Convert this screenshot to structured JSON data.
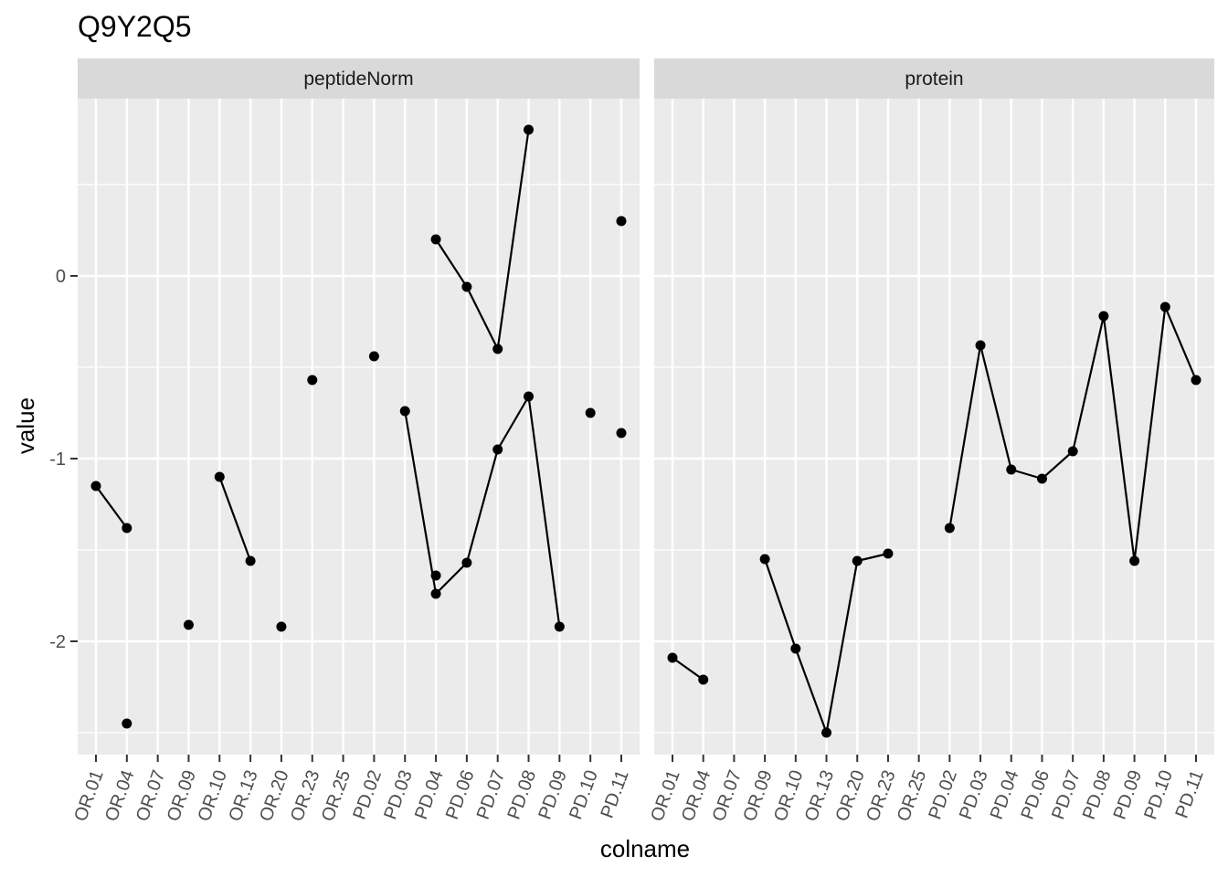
{
  "chart_data": {
    "type": "line",
    "title": "Q9Y2Q5",
    "xlabel": "colname",
    "ylabel": "value",
    "categories": [
      "OR.01",
      "OR.04",
      "OR.07",
      "OR.09",
      "OR.10",
      "OR.13",
      "OR.20",
      "OR.23",
      "OR.25",
      "PD.02",
      "PD.03",
      "PD.04",
      "PD.06",
      "PD.07",
      "PD.08",
      "PD.09",
      "PD.10",
      "PD.11"
    ],
    "ylim": [
      -2.62,
      0.97
    ],
    "yticks": [
      -2,
      -1,
      0
    ],
    "ytick_labels": [
      "-2",
      "-1",
      "0"
    ],
    "grid": true,
    "legend": "none",
    "colors": {
      "panel_bg": "#ebebeb",
      "strip_bg": "#d9d9d9",
      "grid": "#ffffff",
      "mark": "#000000"
    },
    "panels": [
      {
        "strip": "peptideNorm",
        "series": [
          {
            "values": [
              -1.15,
              -1.38,
              null,
              null,
              null,
              null,
              null,
              null,
              null,
              null,
              null,
              null,
              null,
              null,
              null,
              null,
              null,
              null
            ]
          },
          {
            "values": [
              null,
              -2.45,
              null,
              null,
              null,
              null,
              null,
              null,
              null,
              null,
              null,
              null,
              null,
              null,
              null,
              null,
              null,
              null
            ]
          },
          {
            "values": [
              null,
              null,
              null,
              -1.91,
              null,
              null,
              null,
              null,
              null,
              null,
              null,
              null,
              null,
              null,
              null,
              null,
              null,
              null
            ]
          },
          {
            "values": [
              null,
              null,
              null,
              null,
              -1.1,
              -1.56,
              null,
              null,
              null,
              null,
              null,
              null,
              null,
              null,
              null,
              null,
              null,
              null
            ]
          },
          {
            "values": [
              null,
              null,
              null,
              null,
              null,
              null,
              -1.92,
              null,
              null,
              null,
              null,
              null,
              null,
              null,
              null,
              null,
              null,
              null
            ]
          },
          {
            "values": [
              null,
              null,
              null,
              null,
              null,
              null,
              null,
              -0.57,
              null,
              null,
              null,
              null,
              null,
              null,
              null,
              null,
              null,
              null
            ]
          },
          {
            "values": [
              null,
              null,
              null,
              null,
              null,
              null,
              null,
              null,
              null,
              -0.44,
              null,
              null,
              null,
              null,
              null,
              null,
              null,
              null
            ]
          },
          {
            "values": [
              null,
              null,
              null,
              null,
              null,
              null,
              null,
              null,
              null,
              null,
              -0.74,
              -1.74,
              -1.57,
              -0.95,
              -0.66,
              -1.92,
              null,
              null
            ]
          },
          {
            "values": [
              null,
              null,
              null,
              null,
              null,
              null,
              null,
              null,
              null,
              null,
              null,
              0.2,
              -0.06,
              -0.4,
              0.8,
              null,
              null,
              null
            ]
          },
          {
            "values": [
              null,
              null,
              null,
              null,
              null,
              null,
              null,
              null,
              null,
              null,
              null,
              -1.64,
              null,
              null,
              null,
              null,
              null,
              null
            ]
          },
          {
            "values": [
              null,
              null,
              null,
              null,
              null,
              null,
              null,
              null,
              null,
              null,
              null,
              null,
              null,
              null,
              null,
              null,
              -0.75,
              null
            ]
          },
          {
            "values": [
              null,
              null,
              null,
              null,
              null,
              null,
              null,
              null,
              null,
              null,
              null,
              null,
              null,
              null,
              null,
              null,
              null,
              0.3
            ]
          },
          {
            "values": [
              null,
              null,
              null,
              null,
              null,
              null,
              null,
              null,
              null,
              null,
              null,
              null,
              null,
              null,
              null,
              null,
              null,
              -0.86
            ]
          }
        ]
      },
      {
        "strip": "protein",
        "series": [
          {
            "values": [
              -2.09,
              -2.21,
              null,
              null,
              null,
              null,
              null,
              null,
              null,
              null,
              null,
              null,
              null,
              null,
              null,
              null,
              null,
              null
            ]
          },
          {
            "values": [
              null,
              null,
              null,
              -1.55,
              -2.04,
              -2.5,
              -1.56,
              -1.52,
              null,
              null,
              null,
              null,
              null,
              null,
              null,
              null,
              null,
              null
            ]
          },
          {
            "values": [
              null,
              null,
              null,
              null,
              null,
              null,
              null,
              null,
              null,
              -1.38,
              -0.38,
              -1.06,
              -1.11,
              -0.96,
              -0.22,
              -1.56,
              -0.17,
              -0.57
            ]
          }
        ]
      }
    ]
  }
}
